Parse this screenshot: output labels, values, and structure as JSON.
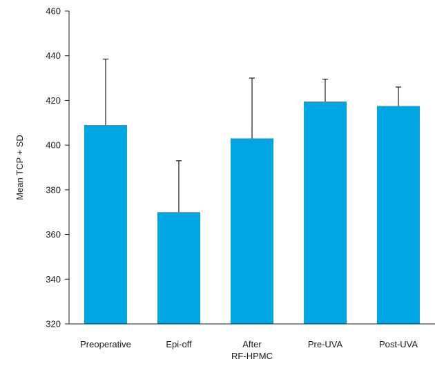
{
  "chart_data": {
    "type": "bar",
    "title": "",
    "xlabel": "",
    "ylabel": "Mean TCP + SD",
    "ylim": [
      320,
      460
    ],
    "yticks": [
      320,
      340,
      360,
      380,
      400,
      420,
      440,
      460
    ],
    "categories": [
      [
        "Preoperative"
      ],
      [
        "Epi-off"
      ],
      [
        "After",
        "RF-HPMC"
      ],
      [
        "Pre-UVA"
      ],
      [
        "Post-UVA"
      ]
    ],
    "values": [
      409,
      370,
      403,
      419.5,
      417.5
    ],
    "error_plus_sd": [
      29.5,
      23,
      27,
      10,
      8.5
    ],
    "bar_color": "#00a6e2",
    "grid": false,
    "legend": "none"
  }
}
